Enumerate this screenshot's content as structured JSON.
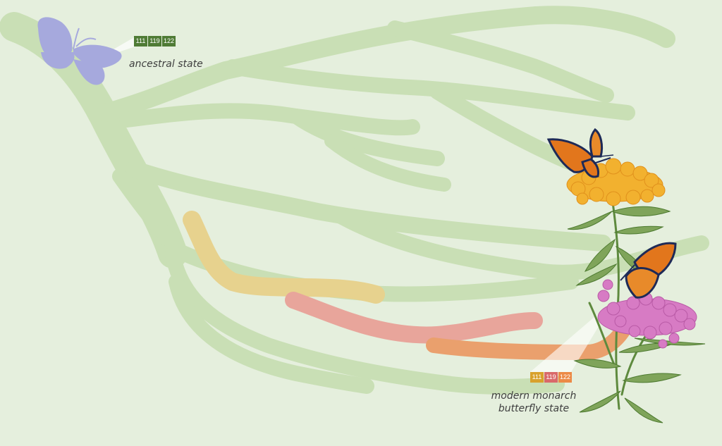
{
  "ancestral": {
    "label": "ancestral state",
    "codes": [
      {
        "text": "111",
        "color": "#4f7b35"
      },
      {
        "text": "119",
        "color": "#4f7b35"
      },
      {
        "text": "122",
        "color": "#4f7b35"
      }
    ]
  },
  "modern": {
    "label_line1": "modern monarch",
    "label_line2": "butterfly state",
    "codes": [
      {
        "text": "111",
        "color": "#d8a12c"
      },
      {
        "text": "119",
        "color": "#d9696a"
      },
      {
        "text": "122",
        "color": "#ec8a46"
      }
    ]
  },
  "colors": {
    "background": "#e5efdd",
    "tree": "#c9dfb5",
    "path_111": "#e7d28e",
    "path_119": "#e8a59b",
    "path_122": "#eaa06d",
    "ancestral_butterfly": "#a6a9dd"
  },
  "icons": [
    "ancestral-butterfly-icon",
    "monarch-butterfly-icon",
    "milkweed-plant-icon"
  ]
}
